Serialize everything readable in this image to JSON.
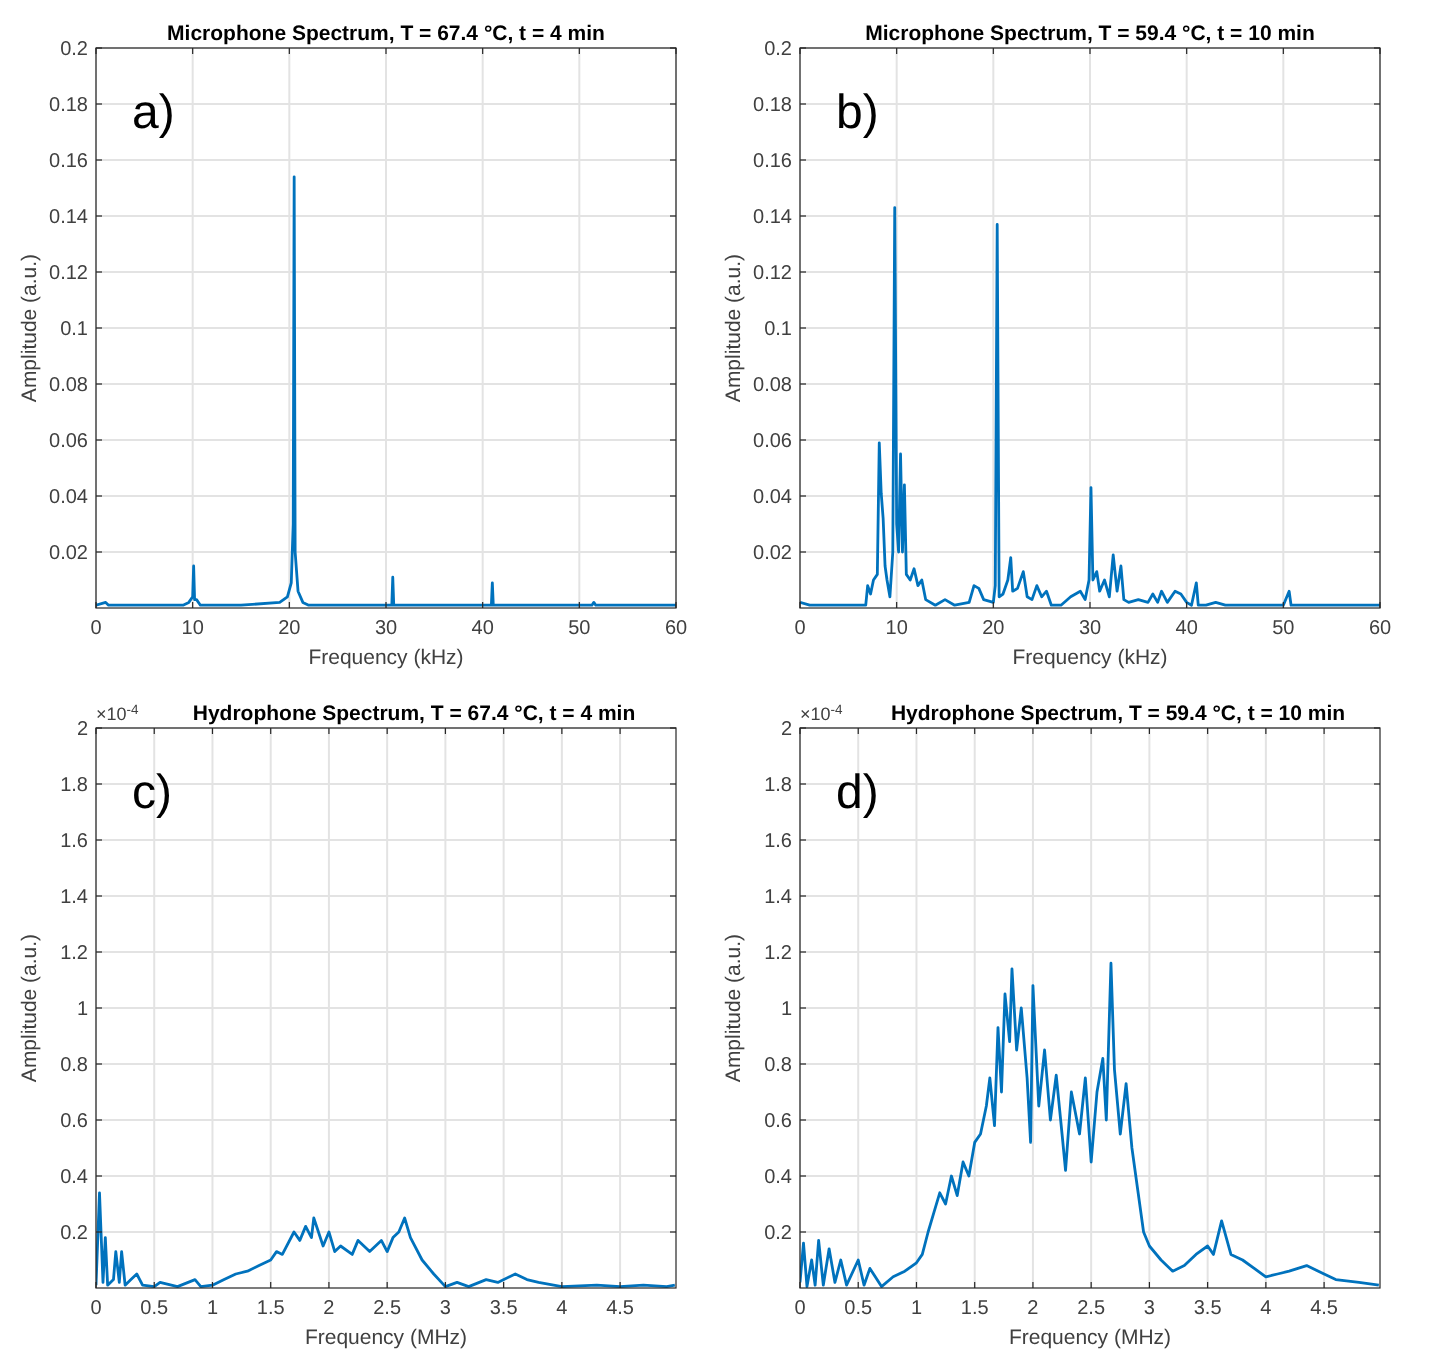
{
  "chart_data": [
    {
      "type": "line",
      "title": "Microphone Spectrum, T = 67.4 °C, t = 4 min",
      "xlabel": "Frequency (kHz)",
      "ylabel": "Amplitude (a.u.)",
      "annotations": [
        "a)"
      ],
      "color": "#0072bd",
      "grid": true,
      "xlim": [
        0,
        60
      ],
      "xticks": [
        0,
        10,
        20,
        30,
        40,
        50,
        60
      ],
      "ylim": [
        0,
        0.2
      ],
      "yticks": [
        0.02,
        0.04,
        0.06,
        0.08,
        0.1,
        0.12,
        0.14,
        0.16,
        0.18,
        0.2
      ],
      "x": [
        0,
        1,
        1.3,
        5,
        9,
        9.6,
        10,
        10.1,
        10.2,
        10.4,
        10.8,
        15,
        19,
        19.8,
        20.2,
        20.4,
        20.5,
        20.6,
        20.9,
        21.4,
        22,
        30,
        30.6,
        30.7,
        30.8,
        35,
        40.9,
        41,
        41.1,
        45,
        51.3,
        51.5,
        51.7,
        56,
        60
      ],
      "values": [
        0.001,
        0.002,
        0.001,
        0.001,
        0.001,
        0.002,
        0.004,
        0.015,
        0.003,
        0.003,
        0.001,
        0.001,
        0.002,
        0.004,
        0.009,
        0.03,
        0.154,
        0.02,
        0.006,
        0.002,
        0.001,
        0.001,
        0.001,
        0.011,
        0.001,
        0.001,
        0.001,
        0.009,
        0.001,
        0.001,
        0.001,
        0.002,
        0.001,
        0.001,
        0.001
      ]
    },
    {
      "type": "line",
      "title": "Microphone Spectrum, T = 59.4 °C, t = 10 min",
      "xlabel": "Frequency (kHz)",
      "ylabel": "Amplitude (a.u.)",
      "annotations": [
        "b)"
      ],
      "color": "#0072bd",
      "grid": true,
      "xlim": [
        0,
        60
      ],
      "xticks": [
        0,
        10,
        20,
        30,
        40,
        50,
        60
      ],
      "ylim": [
        0,
        0.2
      ],
      "yticks": [
        0.02,
        0.04,
        0.06,
        0.08,
        0.1,
        0.12,
        0.14,
        0.16,
        0.18,
        0.2
      ],
      "x": [
        0,
        1,
        3,
        5,
        6.8,
        7,
        7.3,
        7.6,
        8,
        8.2,
        8.4,
        8.6,
        8.8,
        9,
        9.3,
        9.6,
        9.8,
        10,
        10.2,
        10.4,
        10.6,
        10.8,
        11,
        11.4,
        11.8,
        12.2,
        12.6,
        13,
        14,
        15,
        16,
        17.5,
        18,
        18.5,
        19,
        20,
        20.2,
        20.4,
        20.6,
        21,
        21.5,
        21.8,
        22,
        22.5,
        23.1,
        23.5,
        24,
        24.5,
        25,
        25.5,
        26,
        27,
        28,
        29,
        29.5,
        29.9,
        30.1,
        30.3,
        30.7,
        31,
        31.5,
        32,
        32.4,
        32.8,
        33.2,
        33.5,
        34,
        35,
        36,
        36.5,
        37,
        37.4,
        38,
        38.8,
        39.4,
        40,
        40.5,
        41,
        41.2,
        42,
        43,
        44,
        50,
        50.6,
        50.8,
        52,
        60
      ],
      "values": [
        0.002,
        0.001,
        0.001,
        0.001,
        0.001,
        0.008,
        0.005,
        0.01,
        0.012,
        0.059,
        0.041,
        0.032,
        0.015,
        0.01,
        0.004,
        0.02,
        0.143,
        0.03,
        0.02,
        0.055,
        0.02,
        0.044,
        0.012,
        0.01,
        0.014,
        0.008,
        0.01,
        0.003,
        0.001,
        0.003,
        0.001,
        0.002,
        0.008,
        0.007,
        0.003,
        0.002,
        0.008,
        0.137,
        0.004,
        0.005,
        0.01,
        0.018,
        0.006,
        0.007,
        0.013,
        0.004,
        0.003,
        0.008,
        0.004,
        0.006,
        0.001,
        0.001,
        0.004,
        0.006,
        0.003,
        0.01,
        0.043,
        0.01,
        0.013,
        0.006,
        0.01,
        0.004,
        0.019,
        0.006,
        0.015,
        0.003,
        0.002,
        0.003,
        0.002,
        0.005,
        0.002,
        0.006,
        0.002,
        0.006,
        0.005,
        0.002,
        0.001,
        0.009,
        0.001,
        0.001,
        0.002,
        0.001,
        0.001,
        0.006,
        0.001,
        0.001,
        0.001
      ]
    },
    {
      "type": "line",
      "title": "Hydrophone Spectrum, T = 67.4 °C, t = 4 min",
      "xlabel": "Frequency (MHz)",
      "ylabel": "Amplitude (a.u.)",
      "annotations": [
        "c)",
        "×10$^{-4}$"
      ],
      "color": "#0072bd",
      "grid": true,
      "xlim": [
        0,
        4.98
      ],
      "xticks": [
        0,
        0.5,
        1,
        1.5,
        2,
        2.5,
        3,
        3.5,
        4,
        4.5
      ],
      "ylim": [
        0,
        2
      ],
      "yticks": [
        0.2,
        0.4,
        0.6,
        0.8,
        1,
        1.2,
        1.4,
        1.6,
        1.8,
        2
      ],
      "x": [
        0,
        0.03,
        0.06,
        0.08,
        0.1,
        0.15,
        0.17,
        0.2,
        0.22,
        0.25,
        0.3,
        0.35,
        0.4,
        0.5,
        0.55,
        0.7,
        0.85,
        0.9,
        1,
        1.1,
        1.2,
        1.3,
        1.4,
        1.5,
        1.55,
        1.6,
        1.7,
        1.75,
        1.8,
        1.85,
        1.87,
        1.95,
        2,
        2.05,
        2.1,
        2.2,
        2.25,
        2.35,
        2.45,
        2.5,
        2.55,
        2.6,
        2.65,
        2.7,
        2.8,
        2.9,
        3,
        3.1,
        3.2,
        3.35,
        3.45,
        3.6,
        3.7,
        3.8,
        4,
        4.3,
        4.5,
        4.7,
        4.9,
        4.97
      ],
      "values": [
        0.01,
        0.34,
        0.02,
        0.18,
        0.01,
        0.03,
        0.13,
        0.02,
        0.13,
        0.01,
        0.03,
        0.05,
        0.01,
        0.005,
        0.02,
        0.005,
        0.03,
        0.005,
        0.01,
        0.03,
        0.05,
        0.06,
        0.08,
        0.1,
        0.13,
        0.12,
        0.2,
        0.17,
        0.22,
        0.18,
        0.25,
        0.15,
        0.2,
        0.13,
        0.15,
        0.12,
        0.17,
        0.13,
        0.17,
        0.13,
        0.18,
        0.2,
        0.25,
        0.18,
        0.1,
        0.05,
        0.005,
        0.02,
        0.005,
        0.03,
        0.02,
        0.05,
        0.03,
        0.02,
        0.005,
        0.01,
        0.005,
        0.01,
        0.005,
        0.01
      ]
    },
    {
      "type": "line",
      "title": "Hydrophone Spectrum, T = 59.4 °C, t = 10 min",
      "xlabel": "Frequency (MHz)",
      "ylabel": "Amplitude (a.u.)",
      "annotations": [
        "d)",
        "×10$^{-4}$"
      ],
      "color": "#0072bd",
      "grid": true,
      "xlim": [
        0,
        4.98
      ],
      "xticks": [
        0,
        0.5,
        1,
        1.5,
        2,
        2.5,
        3,
        3.5,
        4,
        4.5
      ],
      "ylim": [
        0,
        2
      ],
      "yticks": [
        0.2,
        0.4,
        0.6,
        0.8,
        1,
        1.2,
        1.4,
        1.6,
        1.8,
        2
      ],
      "x": [
        0,
        0.03,
        0.06,
        0.1,
        0.13,
        0.16,
        0.2,
        0.25,
        0.3,
        0.35,
        0.4,
        0.5,
        0.55,
        0.6,
        0.7,
        0.8,
        0.9,
        1,
        1.05,
        1.1,
        1.15,
        1.2,
        1.25,
        1.3,
        1.35,
        1.4,
        1.45,
        1.5,
        1.55,
        1.6,
        1.63,
        1.67,
        1.7,
        1.73,
        1.76,
        1.8,
        1.82,
        1.86,
        1.9,
        1.95,
        1.98,
        2,
        2.05,
        2.1,
        2.15,
        2.2,
        2.25,
        2.28,
        2.33,
        2.4,
        2.45,
        2.5,
        2.55,
        2.6,
        2.63,
        2.67,
        2.7,
        2.75,
        2.8,
        2.85,
        2.9,
        2.95,
        3,
        3.1,
        3.2,
        3.3,
        3.4,
        3.5,
        3.55,
        3.62,
        3.7,
        3.8,
        3.9,
        4,
        4.1,
        4.2,
        4.35,
        4.5,
        4.6,
        4.8,
        4.97
      ],
      "values": [
        0.02,
        0.16,
        0.005,
        0.1,
        0.01,
        0.17,
        0.01,
        0.14,
        0.02,
        0.1,
        0.01,
        0.1,
        0.01,
        0.07,
        0.005,
        0.04,
        0.06,
        0.09,
        0.12,
        0.2,
        0.27,
        0.34,
        0.3,
        0.4,
        0.33,
        0.45,
        0.4,
        0.52,
        0.55,
        0.65,
        0.75,
        0.58,
        0.93,
        0.7,
        1.05,
        0.88,
        1.14,
        0.85,
        1,
        0.75,
        0.52,
        1.08,
        0.65,
        0.85,
        0.6,
        0.76,
        0.55,
        0.42,
        0.7,
        0.55,
        0.75,
        0.45,
        0.7,
        0.82,
        0.6,
        1.16,
        0.78,
        0.55,
        0.73,
        0.5,
        0.35,
        0.2,
        0.15,
        0.1,
        0.06,
        0.08,
        0.12,
        0.15,
        0.12,
        0.24,
        0.12,
        0.1,
        0.07,
        0.04,
        0.05,
        0.06,
        0.08,
        0.05,
        0.03,
        0.02,
        0.01
      ]
    }
  ]
}
